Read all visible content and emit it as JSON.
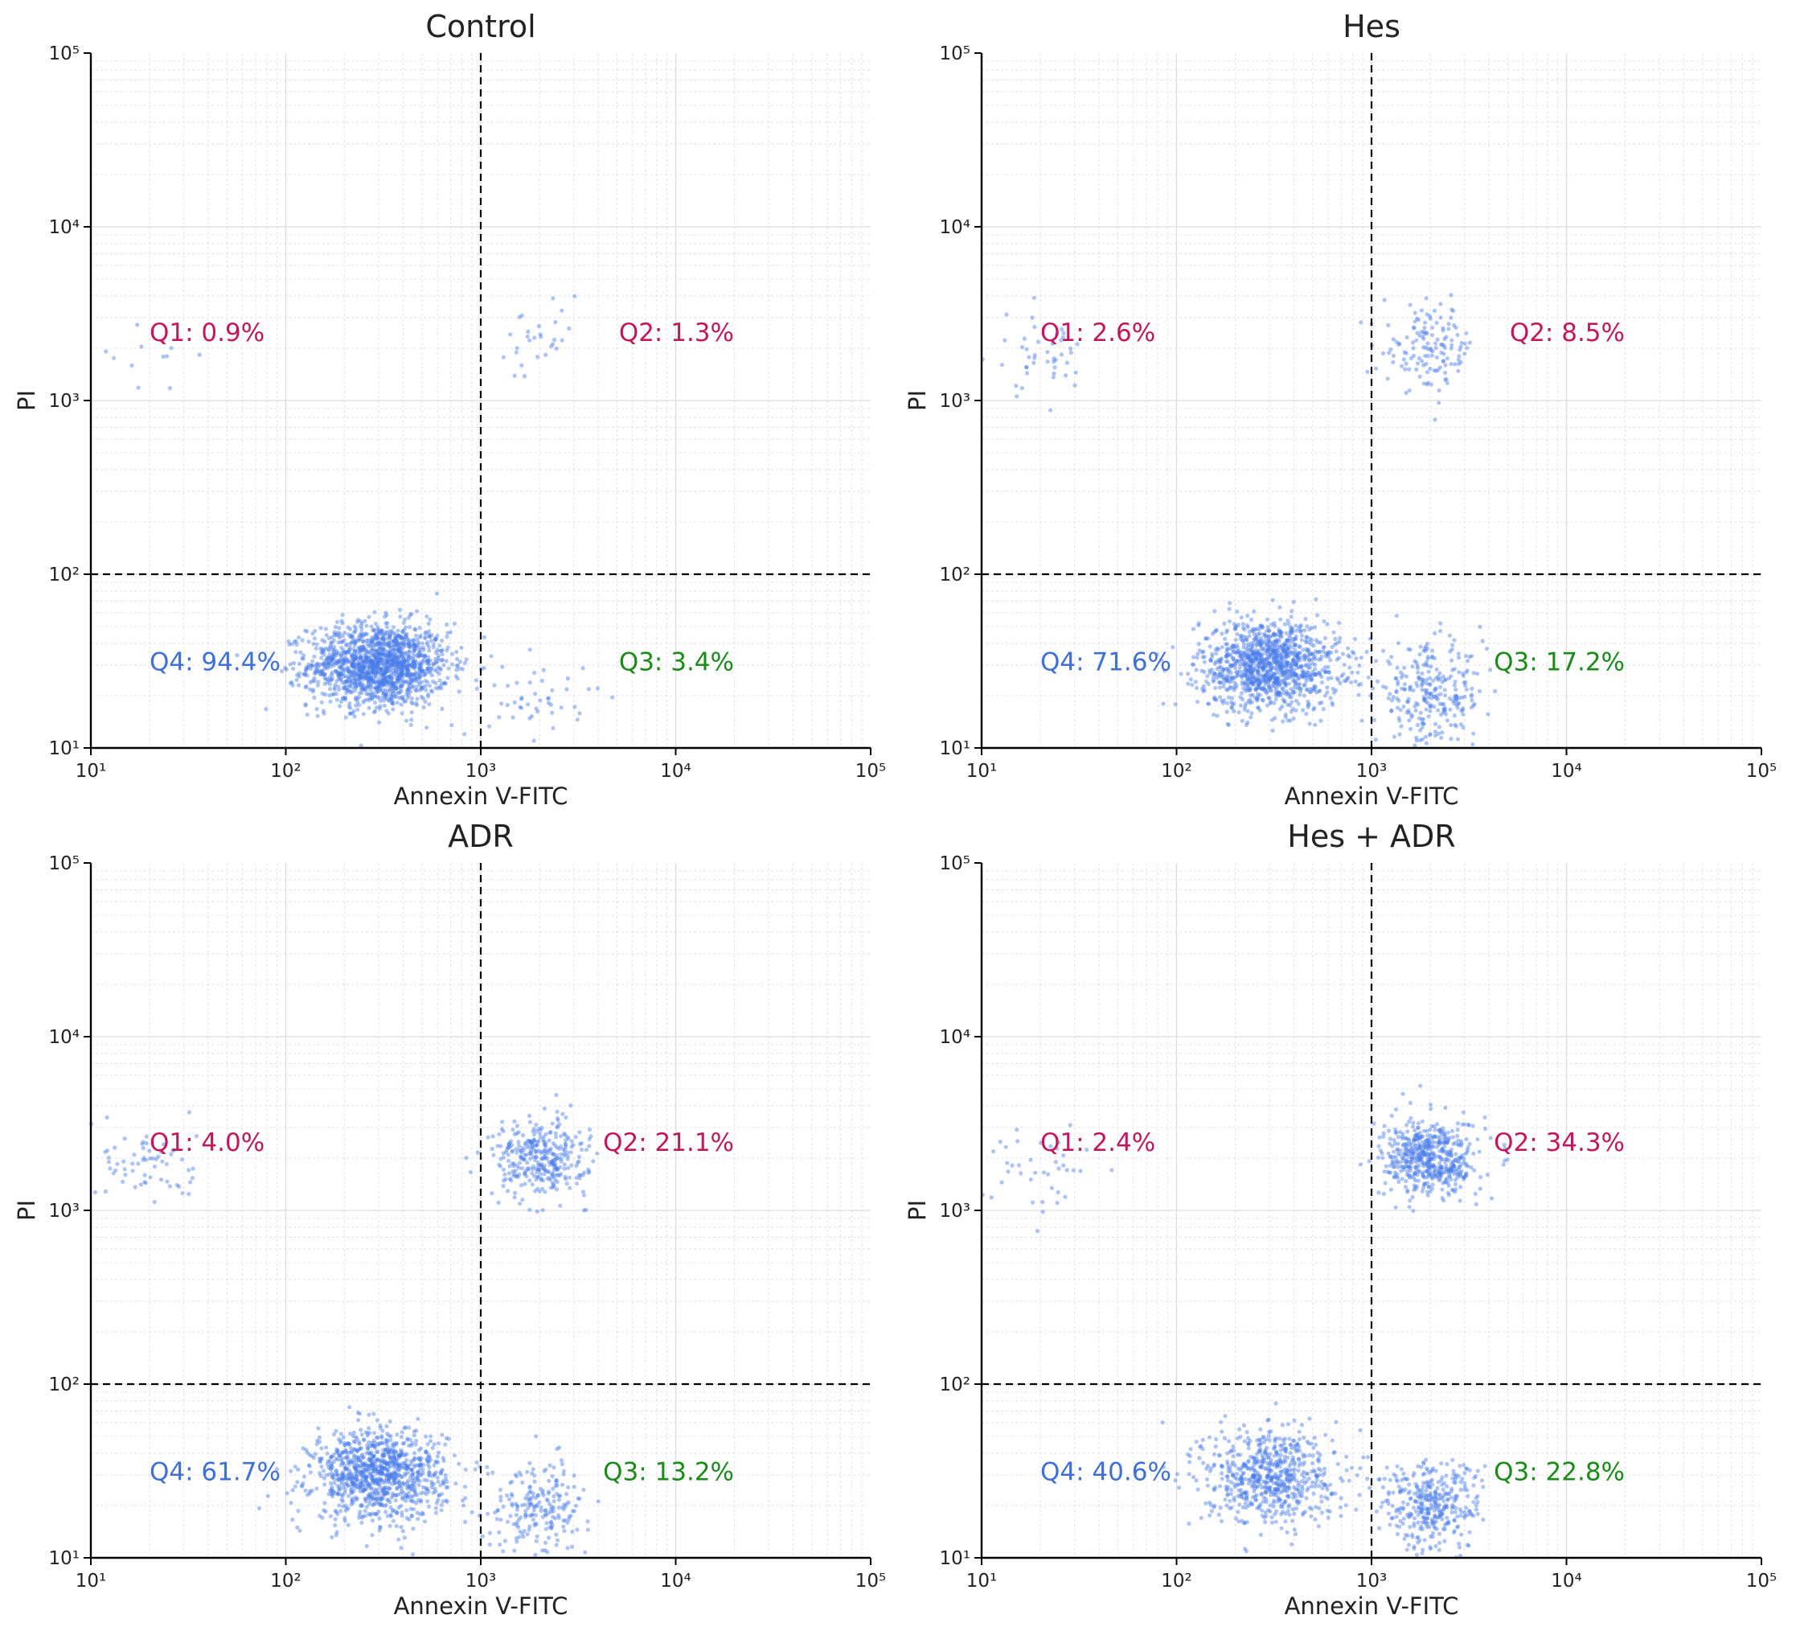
{
  "chart_data": [
    {
      "type": "scatter",
      "title": "Control",
      "xlabel": "Annexin V-FITC",
      "ylabel": "PI",
      "xscale": "log",
      "yscale": "log",
      "xlim": [
        10,
        100000
      ],
      "ylim": [
        10,
        100000
      ],
      "x_ticks": [
        10,
        100,
        1000,
        10000,
        100000
      ],
      "y_ticks": [
        10,
        100,
        1000,
        10000,
        100000
      ],
      "gates": {
        "x": 1000,
        "y": 100
      },
      "grid": true,
      "quadrants": [
        {
          "id": "Q1",
          "label": "Q1: 0.9%",
          "percent": 0.9,
          "color": "#c2185b"
        },
        {
          "id": "Q2",
          "label": "Q2: 1.3%",
          "percent": 1.3,
          "color": "#c2185b"
        },
        {
          "id": "Q3",
          "label": "Q3: 3.4%",
          "percent": 3.4,
          "color": "#1a8a1a"
        },
        {
          "id": "Q4",
          "label": "Q4: 94.4%",
          "percent": 94.4,
          "color": "#3f6fd8"
        }
      ],
      "clusters": [
        {
          "center": [
            300,
            30
          ],
          "spread": [
            0.18,
            0.12
          ],
          "count": 1500
        },
        {
          "center": [
            2000,
            20
          ],
          "spread": [
            0.13,
            0.12
          ],
          "count": 45
        },
        {
          "center": [
            2000,
            2000
          ],
          "spread": [
            0.12,
            0.12
          ],
          "count": 28
        },
        {
          "center": [
            20,
            1800
          ],
          "spread": [
            0.13,
            0.13
          ],
          "count": 12
        }
      ]
    },
    {
      "type": "scatter",
      "title": "Hes",
      "xlabel": "Annexin V-FITC",
      "ylabel": "PI",
      "xscale": "log",
      "yscale": "log",
      "xlim": [
        10,
        100000
      ],
      "ylim": [
        10,
        100000
      ],
      "x_ticks": [
        10,
        100,
        1000,
        10000,
        100000
      ],
      "y_ticks": [
        10,
        100,
        1000,
        10000,
        100000
      ],
      "gates": {
        "x": 1000,
        "y": 100
      },
      "grid": true,
      "quadrants": [
        {
          "id": "Q1",
          "label": "Q1: 2.6%",
          "percent": 2.6,
          "color": "#c2185b"
        },
        {
          "id": "Q2",
          "label": "Q2: 8.5%",
          "percent": 8.5,
          "color": "#c2185b"
        },
        {
          "id": "Q3",
          "label": "Q3: 17.2%",
          "percent": 17.2,
          "color": "#1a8a1a"
        },
        {
          "id": "Q4",
          "label": "Q4: 71.6%",
          "percent": 71.6,
          "color": "#3f6fd8"
        }
      ],
      "clusters": [
        {
          "center": [
            300,
            30
          ],
          "spread": [
            0.18,
            0.13
          ],
          "count": 1150
        },
        {
          "center": [
            2000,
            20
          ],
          "spread": [
            0.14,
            0.14
          ],
          "count": 280
        },
        {
          "center": [
            2000,
            2000
          ],
          "spread": [
            0.12,
            0.12
          ],
          "count": 140
        },
        {
          "center": [
            20,
            1800
          ],
          "spread": [
            0.13,
            0.12
          ],
          "count": 45
        }
      ]
    },
    {
      "type": "scatter",
      "title": "ADR",
      "xlabel": "Annexin V-FITC",
      "ylabel": "PI",
      "xscale": "log",
      "yscale": "log",
      "xlim": [
        10,
        100000
      ],
      "ylim": [
        10,
        100000
      ],
      "x_ticks": [
        10,
        100,
        1000,
        10000,
        100000
      ],
      "y_ticks": [
        10,
        100,
        1000,
        10000,
        100000
      ],
      "gates": {
        "x": 1000,
        "y": 100
      },
      "grid": true,
      "quadrants": [
        {
          "id": "Q1",
          "label": "Q1: 4.0%",
          "percent": 4.0,
          "color": "#c2185b"
        },
        {
          "id": "Q2",
          "label": "Q2: 21.1%",
          "percent": 21.1,
          "color": "#c2185b"
        },
        {
          "id": "Q3",
          "label": "Q3: 13.2%",
          "percent": 13.2,
          "color": "#1a8a1a"
        },
        {
          "id": "Q4",
          "label": "Q4: 61.7%",
          "percent": 61.7,
          "color": "#3f6fd8"
        }
      ],
      "clusters": [
        {
          "center": [
            300,
            30
          ],
          "spread": [
            0.17,
            0.13
          ],
          "count": 1000
        },
        {
          "center": [
            2000,
            20
          ],
          "spread": [
            0.13,
            0.13
          ],
          "count": 215
        },
        {
          "center": [
            2000,
            2000
          ],
          "spread": [
            0.12,
            0.11
          ],
          "count": 340
        },
        {
          "center": [
            20,
            1800
          ],
          "spread": [
            0.12,
            0.12
          ],
          "count": 65
        }
      ]
    },
    {
      "type": "scatter",
      "title": "Hes + ADR",
      "xlabel": "Annexin V-FITC",
      "ylabel": "PI",
      "xscale": "log",
      "yscale": "log",
      "xlim": [
        10,
        100000
      ],
      "ylim": [
        10,
        100000
      ],
      "x_ticks": [
        10,
        100,
        1000,
        10000,
        100000
      ],
      "y_ticks": [
        10,
        100,
        1000,
        10000,
        100000
      ],
      "gates": {
        "x": 1000,
        "y": 100
      },
      "grid": true,
      "quadrants": [
        {
          "id": "Q1",
          "label": "Q1: 2.4%",
          "percent": 2.4,
          "color": "#c2185b"
        },
        {
          "id": "Q2",
          "label": "Q2: 34.3%",
          "percent": 34.3,
          "color": "#c2185b"
        },
        {
          "id": "Q3",
          "label": "Q3: 22.8%",
          "percent": 22.8,
          "color": "#1a8a1a"
        },
        {
          "id": "Q4",
          "label": "Q4: 40.6%",
          "percent": 40.6,
          "color": "#3f6fd8"
        }
      ],
      "clusters": [
        {
          "center": [
            300,
            30
          ],
          "spread": [
            0.17,
            0.14
          ],
          "count": 650
        },
        {
          "center": [
            2000,
            20
          ],
          "spread": [
            0.13,
            0.13
          ],
          "count": 365
        },
        {
          "center": [
            2000,
            2000
          ],
          "spread": [
            0.12,
            0.11
          ],
          "count": 550
        },
        {
          "center": [
            20,
            1800
          ],
          "spread": [
            0.14,
            0.13
          ],
          "count": 40
        }
      ]
    }
  ],
  "colors": {
    "point": "#4a7de8",
    "gate": "#000000",
    "grid": "#dddddd",
    "axis": "#000000"
  }
}
